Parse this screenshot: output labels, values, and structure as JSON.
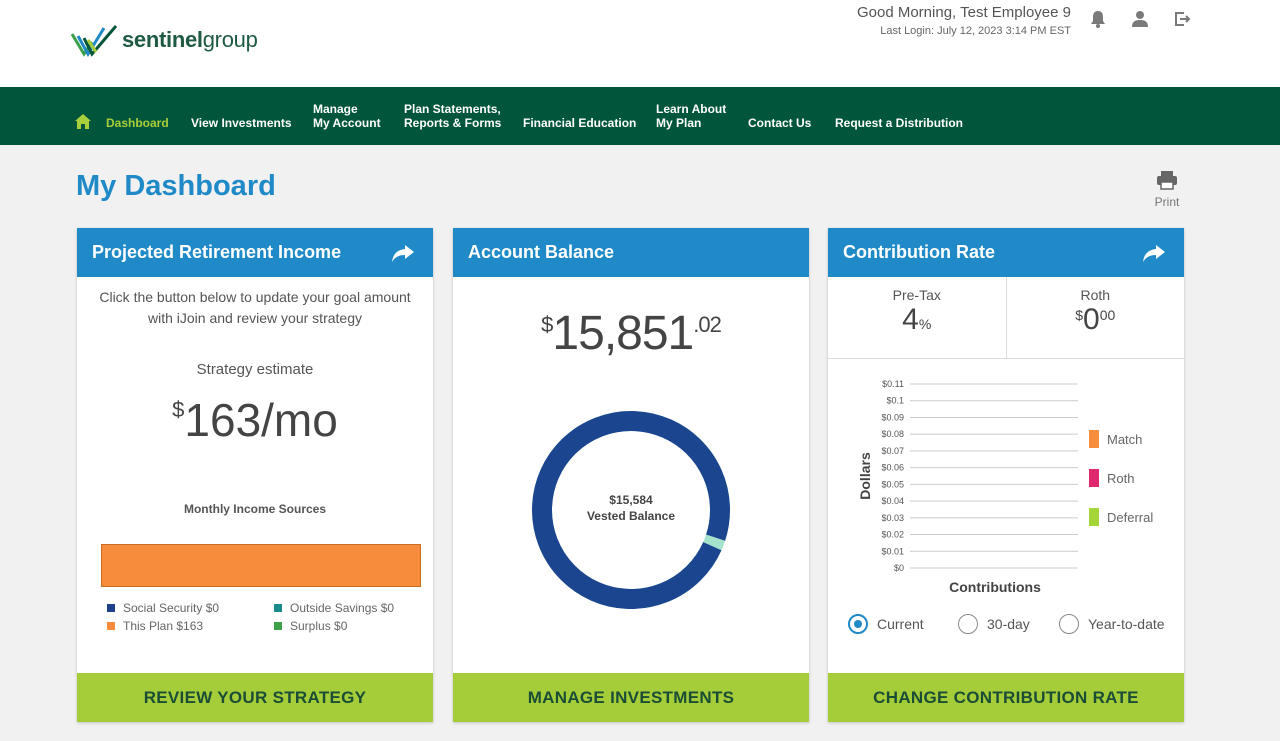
{
  "brand": {
    "logo_bold": "sentinel",
    "logo_light": "group"
  },
  "user": {
    "greeting": "Good Morning,  Test Employee 9",
    "last_login": "Last Login: July 12, 2023 3:14 PM EST"
  },
  "nav": {
    "dashboard": "Dashboard",
    "view_investments": "View Investments",
    "manage_line1": "Manage",
    "manage_line2": "My Account",
    "plan_line1": "Plan Statements,",
    "plan_line2": "Reports & Forms",
    "financial_education": "Financial Education",
    "learn_line1": "Learn About",
    "learn_line2": "My Plan",
    "contact_us": "Contact Us",
    "request_distribution": "Request a Distribution"
  },
  "page": {
    "title": "My Dashboard",
    "print_label": "Print"
  },
  "projected": {
    "title": "Projected Retirement Income",
    "description": "Click the button below to update your goal amount with iJoin and review your strategy",
    "estimate_label": "Strategy estimate",
    "estimate_currency": "$",
    "estimate_value": "163/mo",
    "sources_title": "Monthly Income Sources",
    "legend": [
      {
        "label": "Social Security $0",
        "color": "#1c3f8c"
      },
      {
        "label": "Outside Savings $0",
        "color": "#1a8a8a"
      },
      {
        "label": "This Plan $163",
        "color": "#f78d3c"
      },
      {
        "label": "Surplus $0",
        "color": "#3aa04a"
      }
    ],
    "button": "REVIEW YOUR STRATEGY"
  },
  "balance": {
    "title": "Account Balance",
    "currency": "$",
    "whole": "15,851",
    "cents": ".02",
    "vested_amount": "$15,584",
    "vested_label": "Vested Balance",
    "vested_fraction": 0.9831,
    "colors": {
      "vested": "#1c4590",
      "unvested": "#a6e3cc"
    },
    "button": "MANAGE INVESTMENTS"
  },
  "contribution": {
    "title": "Contribution Rate",
    "pretax_label": "Pre-Tax",
    "pretax_value": "4",
    "pretax_unit": "%",
    "roth_label": "Roth",
    "roth_currency": "$",
    "roth_value": "0",
    "roth_cents": "00",
    "radios": {
      "current": "Current",
      "thirty": "30-day",
      "ytd": "Year-to-date",
      "selected": "Current"
    },
    "button": "CHANGE CONTRIBUTION RATE"
  },
  "chart_data": {
    "type": "bar",
    "xlabel": "Contributions",
    "ylabel": "Dollars",
    "ylim": [
      0,
      0.11
    ],
    "y_ticks": [
      "$0",
      "$0.01",
      "$0.02",
      "$0.03",
      "$0.04",
      "$0.05",
      "$0.06",
      "$0.07",
      "$0.08",
      "$0.09",
      "$0.1",
      "$0.11"
    ],
    "grid": true,
    "legend_position": "right",
    "series": [
      {
        "name": "Match",
        "values": [
          0
        ],
        "color": "#f78d3c"
      },
      {
        "name": "Roth",
        "values": [
          0
        ],
        "color": "#e0286e"
      },
      {
        "name": "Deferral",
        "values": [
          0
        ],
        "color": "#a4d63a"
      }
    ]
  }
}
